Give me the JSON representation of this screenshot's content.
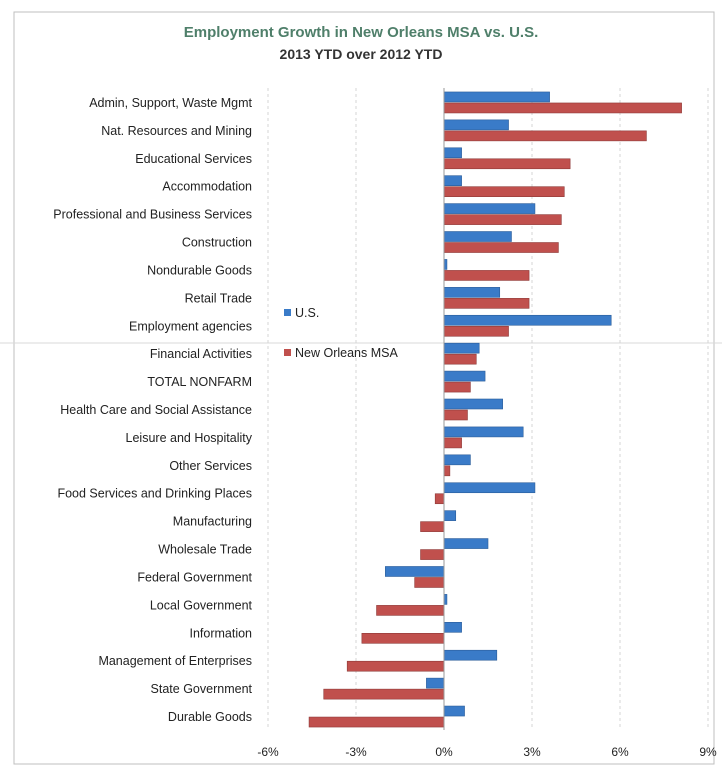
{
  "chart_data": {
    "type": "bar",
    "orientation": "horizontal",
    "title": "Employment Growth in New Orleans MSA vs. U.S.",
    "subtitle": "2013 YTD over 2012 YTD",
    "categories": [
      "Admin, Support, Waste Mgmt",
      "Nat. Resources and Mining",
      "Educational Services",
      "Accommodation",
      "Professional and Business Services",
      "Construction",
      "Nondurable Goods",
      "Retail Trade",
      "Employment agencies",
      "Financial Activities",
      "TOTAL NONFARM",
      "Health Care and Social Assistance",
      "Leisure and Hospitality",
      "Other Services",
      "Food Services and Drinking Places",
      "Manufacturing",
      "Wholesale Trade",
      "Federal Government",
      "Local Government",
      "Information",
      "Management of Enterprises",
      "State Government",
      "Durable Goods"
    ],
    "series": [
      {
        "name": "U.S.",
        "color": "#3a7bc8",
        "values": [
          3.6,
          2.2,
          0.6,
          0.6,
          3.1,
          2.3,
          0.1,
          1.9,
          5.7,
          1.2,
          1.4,
          2.0,
          2.7,
          0.9,
          3.1,
          0.4,
          1.5,
          -2.0,
          0.1,
          0.6,
          1.8,
          -0.6,
          0.7
        ]
      },
      {
        "name": "New Orleans MSA",
        "color": "#c0504d",
        "values": [
          8.1,
          6.9,
          4.3,
          4.1,
          4.0,
          3.9,
          2.9,
          2.9,
          2.2,
          1.1,
          0.9,
          0.8,
          0.6,
          0.2,
          -0.3,
          -0.8,
          -0.8,
          -1.0,
          -2.3,
          -2.8,
          -3.3,
          -4.1,
          -4.6
        ]
      }
    ],
    "xlim": [
      -6,
      9
    ],
    "xticks": [
      "-6%",
      "-3%",
      "0%",
      "3%",
      "6%",
      "9%"
    ],
    "xtick_values": [
      -6,
      -3,
      0,
      3,
      6,
      9
    ],
    "grid": "vertical",
    "legend_position": "left-middle"
  }
}
